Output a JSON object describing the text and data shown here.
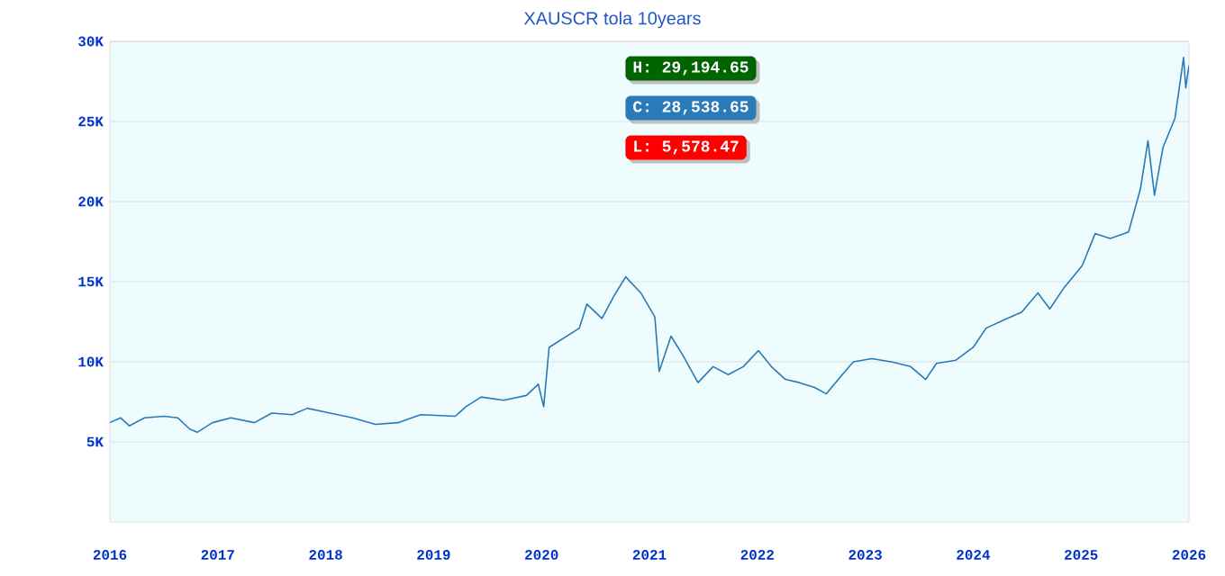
{
  "chart_data": {
    "type": "line",
    "title": "XAUSCR tola  10years",
    "x": [
      2016.0,
      2016.1,
      2016.18,
      2016.32,
      2016.5,
      2016.63,
      2016.74,
      2016.81,
      2016.95,
      2017.12,
      2017.34,
      2017.5,
      2017.69,
      2017.83,
      2018.04,
      2018.25,
      2018.46,
      2018.67,
      2018.88,
      2019.2,
      2019.3,
      2019.44,
      2019.65,
      2019.86,
      2019.97,
      2020.02,
      2020.07,
      2020.21,
      2020.35,
      2020.42,
      2020.56,
      2020.67,
      2020.78,
      2020.92,
      2021.05,
      2021.09,
      2021.2,
      2021.31,
      2021.45,
      2021.59,
      2021.73,
      2021.87,
      2022.01,
      2022.13,
      2022.26,
      2022.39,
      2022.53,
      2022.64,
      2022.75,
      2022.89,
      2023.06,
      2023.24,
      2023.42,
      2023.56,
      2023.66,
      2023.84,
      2024.0,
      2024.12,
      2024.28,
      2024.45,
      2024.6,
      2024.71,
      2024.84,
      2025.01,
      2025.13,
      2025.27,
      2025.44,
      2025.55,
      2025.62,
      2025.68,
      2025.76,
      2025.87,
      2025.95,
      2025.97,
      2026.0
    ],
    "series": [
      {
        "color": "#2a7ab8",
        "values": [
          6200,
          6500,
          6000,
          6500,
          6600,
          6500,
          5800,
          5600,
          6200,
          6500,
          6200,
          6800,
          6700,
          7100,
          6800,
          6500,
          6100,
          6200,
          6700,
          6600,
          7200,
          7800,
          7600,
          7900,
          8600,
          7200,
          10900,
          11500,
          12100,
          13600,
          12700,
          14100,
          15300,
          14300,
          12800,
          9400,
          11600,
          10400,
          8700,
          9700,
          9200,
          9700,
          10700,
          9700,
          8900,
          8700,
          8400,
          8000,
          8900,
          10000,
          10200,
          10000,
          9700,
          8900,
          9900,
          10100,
          10900,
          12100,
          12600,
          13100,
          14300,
          13300,
          14600,
          16000,
          18000,
          17700,
          18100,
          20800,
          23800,
          20400,
          23400,
          25200,
          29000,
          27100,
          28500
        ]
      }
    ],
    "xlim": [
      2016,
      2026
    ],
    "xticks": [
      2016,
      2017,
      2018,
      2019,
      2020,
      2021,
      2022,
      2023,
      2024,
      2025,
      2026
    ],
    "ylim": [
      0,
      30000
    ],
    "yticks": [
      {
        "value": 5000,
        "label": "5K"
      },
      {
        "value": 10000,
        "label": "10K"
      },
      {
        "value": 15000,
        "label": "15K"
      },
      {
        "value": 20000,
        "label": "20K"
      },
      {
        "value": 25000,
        "label": "25K"
      },
      {
        "value": 30000,
        "label": "30K"
      }
    ],
    "grid": "y",
    "marker": "none",
    "line_style": "solid",
    "annotations": [
      "H: 29,194.65",
      "C: 28,538.65",
      "L: 5,578.47"
    ]
  }
}
